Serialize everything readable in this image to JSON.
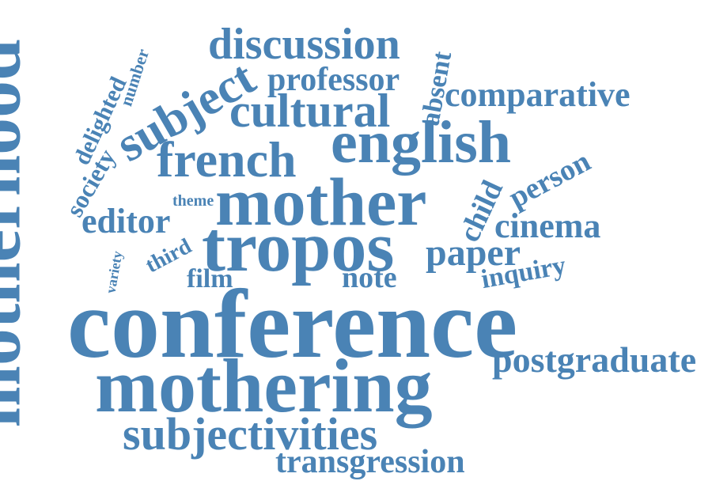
{
  "words": {
    "conference": "conference",
    "motherhood": "motherhood",
    "mothering": "mothering",
    "mother": "mother",
    "tropos": "tropos",
    "english": "english",
    "french": "french",
    "subjectivities": "subjectivities",
    "transgression": "transgression",
    "discussion": "discussion",
    "professor": "professor",
    "cultural": "cultural",
    "subject": "subject",
    "comparative": "comparative",
    "absent": "absent",
    "number": "number",
    "delighted": "delighted",
    "society": "society",
    "editor": "editor",
    "theme": "theme",
    "third": "third",
    "variety": "variety",
    "film": "film",
    "note": "note",
    "paper": "paper",
    "child": "child",
    "person": "person",
    "cinema": "cinema",
    "inquiry": "inquiry",
    "postgraduate": "postgraduate"
  },
  "color": "#4a83b5"
}
